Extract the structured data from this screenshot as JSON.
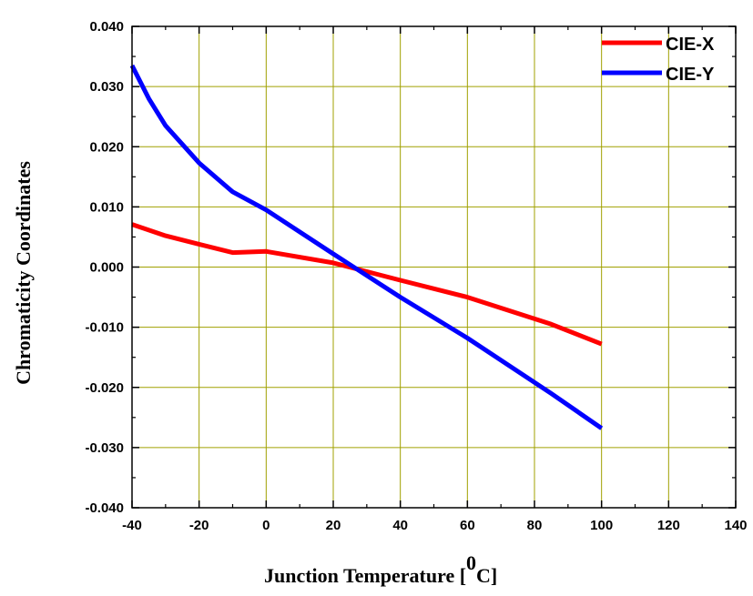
{
  "chart_data": {
    "type": "line",
    "xlabel": "Junction Temperature [",
    "xlabel_superscript": "0",
    "xlabel_suffix": "C]",
    "ylabel": "Chromaticity Coordinates",
    "xlim": [
      -40,
      140
    ],
    "ylim": [
      -0.04,
      0.04
    ],
    "x_ticks": [
      "-40",
      "-20",
      "0",
      "20",
      "40",
      "60",
      "80",
      "100",
      "120",
      "140"
    ],
    "y_ticks": [
      "0.040",
      "0.030",
      "0.020",
      "0.010",
      "0.000",
      "-0.010",
      "-0.020",
      "-0.030",
      "-0.040"
    ],
    "grid": true,
    "legend_position": "top-right",
    "series": [
      {
        "name": "CIE-X",
        "color": "#ff0000",
        "x": [
          -40,
          -30,
          -20,
          -10,
          0,
          20,
          40,
          60,
          85,
          100
        ],
        "y": [
          0.0071,
          0.0052,
          0.0038,
          0.0024,
          0.0026,
          0.0007,
          -0.0022,
          -0.005,
          -0.0095,
          -0.0128
        ]
      },
      {
        "name": "CIE-Y",
        "color": "#0000ff",
        "x": [
          -40,
          -35,
          -30,
          -20,
          -10,
          0,
          20,
          40,
          60,
          85,
          100
        ],
        "y": [
          0.0335,
          0.028,
          0.0235,
          0.0173,
          0.0125,
          0.0095,
          0.0022,
          -0.005,
          -0.0118,
          -0.021,
          -0.0268
        ]
      }
    ],
    "grid_color": "#a0a000"
  }
}
